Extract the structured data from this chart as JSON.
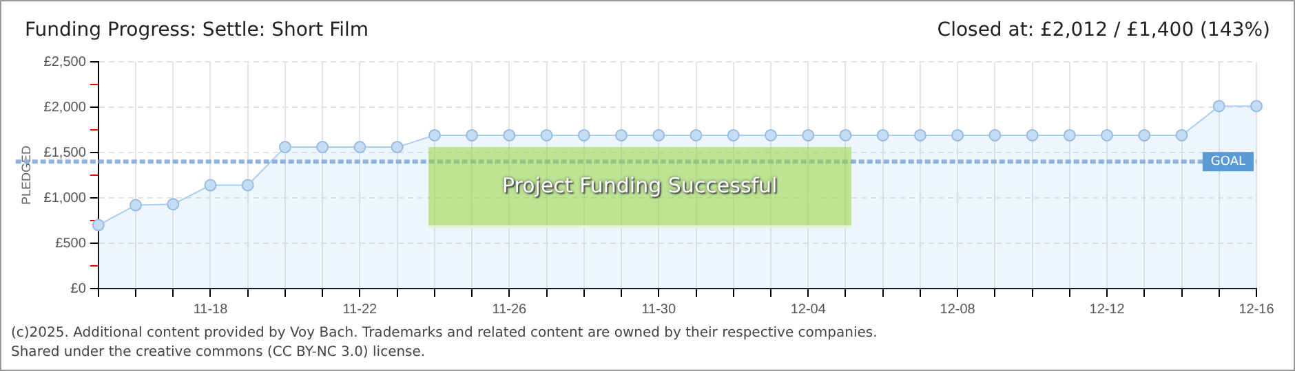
{
  "chart_data": {
    "type": "area",
    "title": "Funding Progress: Settle: Short Film",
    "subtitle": "Closed at:  £2,012 /  £1,400 (143%)",
    "ylabel": "PLEDGED",
    "categories": [
      null,
      null,
      null,
      "11-18",
      null,
      null,
      null,
      "11-22",
      null,
      null,
      null,
      "11-26",
      null,
      null,
      null,
      "11-30",
      null,
      null,
      null,
      "12-04",
      null,
      null,
      null,
      "12-08",
      null,
      null,
      null,
      "12-12",
      null,
      null,
      null,
      "12-16"
    ],
    "series": [
      {
        "color": "#a9cdf0",
        "values": [
          700,
          920,
          930,
          1140,
          1140,
          1560,
          1560,
          1560,
          1560,
          1690,
          1690,
          1690,
          1690,
          1690,
          1690,
          1690,
          1690,
          1690,
          1690,
          1690,
          1690,
          1690,
          1690,
          1690,
          1690,
          1690,
          1690,
          1690,
          1690,
          1690,
          2012,
          2012
        ]
      }
    ],
    "ylim": [
      0,
      2500
    ],
    "yticks": [
      {
        "value": 0,
        "label": "£0"
      },
      {
        "value": 250,
        "label": null
      },
      {
        "value": 500,
        "label": "£500"
      },
      {
        "value": 750,
        "label": null
      },
      {
        "value": 1000,
        "label": "£1,000"
      },
      {
        "value": 1250,
        "label": null
      },
      {
        "value": 1500,
        "label": "£1,500"
      },
      {
        "value": 1750,
        "label": null
      },
      {
        "value": 2000,
        "label": "£2,000"
      },
      {
        "value": 2250,
        "label": null
      },
      {
        "value": 2500,
        "label": "£2,500"
      }
    ],
    "ref_lines": [
      {
        "axis": "y",
        "value": 1400,
        "label": "GOAL",
        "color": "#8fb4dc",
        "line_style": "dashed"
      }
    ],
    "annotations": [
      "Project Funding Successful",
      "(c)2025. Additional content provided by Voy Bach. Trademarks and related content are owned by their respective companies.",
      "Shared under the creative commons (CC BY-NC 3.0) license."
    ],
    "grid": true,
    "legend": false,
    "marker": "circle",
    "line_style": "solid"
  }
}
